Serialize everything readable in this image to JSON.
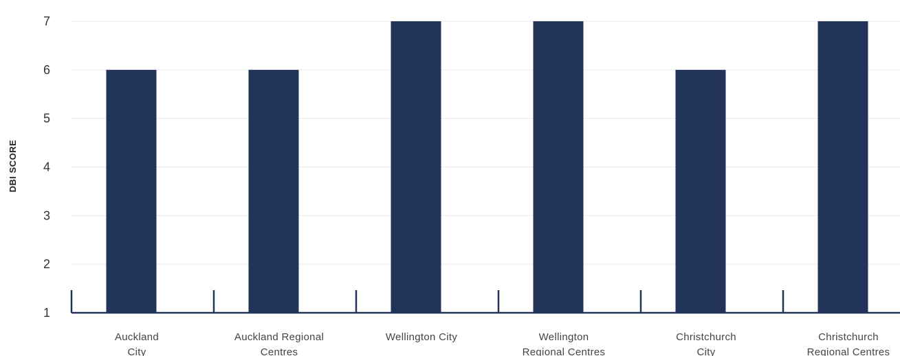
{
  "chart_data": {
    "type": "bar",
    "ylabel": "DBI SCORE",
    "xlabel": "",
    "title": "",
    "ylim": [
      1,
      7
    ],
    "yticks": [
      1,
      2,
      3,
      4,
      5,
      6,
      7
    ],
    "grid": true,
    "bar_color": "#22345a",
    "categories": [
      [
        "Auckland",
        "City"
      ],
      [
        "Auckland Regional",
        "Centres"
      ],
      [
        "Wellington City"
      ],
      [
        "Wellington",
        "Regional Centres"
      ],
      [
        "Christchurch",
        "City"
      ],
      [
        "Christchurch",
        "Regional Centres"
      ]
    ],
    "values": [
      6,
      6,
      7,
      7,
      6,
      7
    ]
  }
}
